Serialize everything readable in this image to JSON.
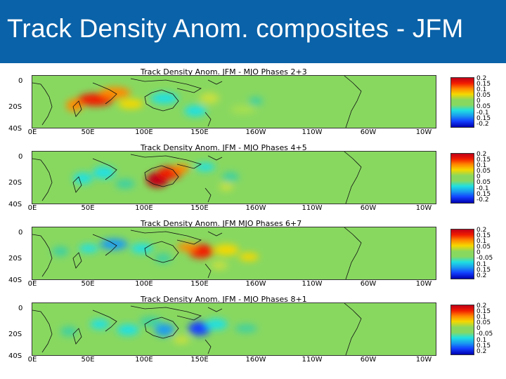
{
  "header": {
    "title": "Track Density Anom. composites - JFM"
  },
  "colors": {
    "header_bg": "#0a62a8",
    "background_anomaly": "#88d860",
    "positive_high": "#c00018",
    "negative_high": "#0000b0"
  },
  "axes": {
    "y_ticks": [
      "0",
      "20S",
      "40S"
    ],
    "x_ticks": [
      "0E",
      "50E",
      "100E",
      "150E",
      "160W",
      "110W",
      "60W",
      "10W"
    ]
  },
  "panels": [
    {
      "title": "Track Density Anom. JFM - MJO Phases 2+3",
      "colorbar_labels": [
        "0.2",
        "0.15",
        "0.1",
        "0.05",
        "0",
        "0.05",
        "-0.1",
        "0.15",
        "-0.2"
      ]
    },
    {
      "title": "Track Density Anom. JFM - MJO Phases 4+5",
      "colorbar_labels": [
        "0.2",
        "0.15",
        "0.1",
        "0.05",
        "0",
        "0.05",
        "-0.1",
        "0.15",
        "-0.2"
      ]
    },
    {
      "title": "Track Density Anom. JFM   MJO Phases 6+7",
      "colorbar_labels": [
        "0.2",
        "0.15",
        "0.1",
        "0.05",
        "0",
        "-0.05",
        "0.1",
        "0.15",
        "0.2"
      ]
    },
    {
      "title": "Track Density Anom. JFM - MJO Phases 8+1",
      "colorbar_labels": [
        "0.2",
        "0.15",
        "0.1",
        "0.05",
        "0",
        "-0.05",
        "0.1",
        "0.15",
        "0.2"
      ]
    }
  ]
}
